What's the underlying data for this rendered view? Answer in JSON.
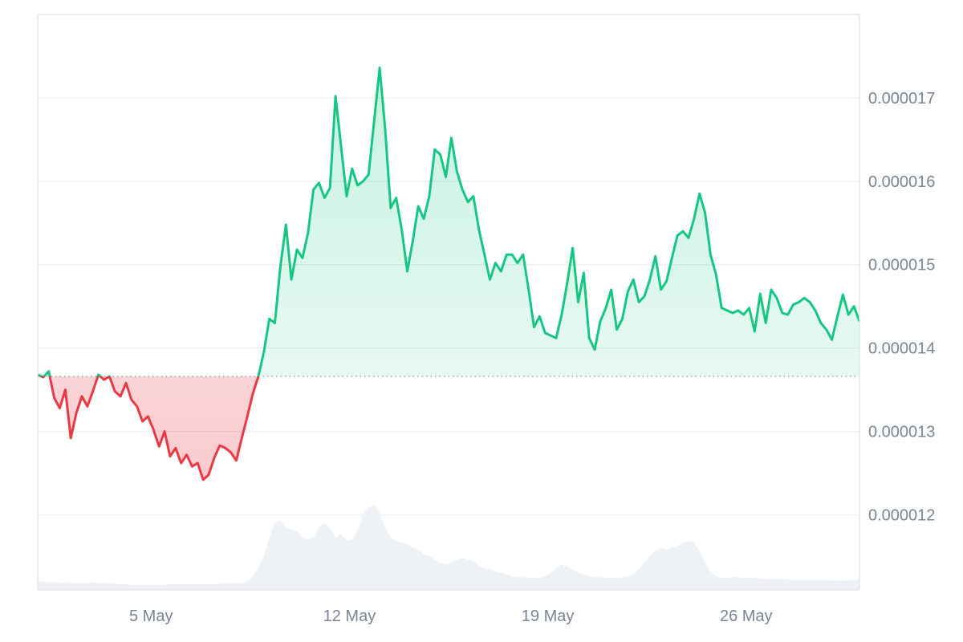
{
  "chart_data": {
    "type": "line",
    "x_ticks": [
      "5 May",
      "12 May",
      "19 May",
      "26 May"
    ],
    "y_ticks": [
      "0.000012",
      "0.000013",
      "0.000014",
      "0.000015",
      "0.000016",
      "0.000017"
    ],
    "ylim": [
      1.11e-05,
      1.8e-05
    ],
    "baseline": 1.366e-05,
    "colors": {
      "up": "#16c784",
      "down": "#ea3943",
      "grid": "#eef0f3",
      "volume": "#eef1f5",
      "axis_text": "#7a8596"
    },
    "series": [
      {
        "values": [
          1.368e-05,
          1.365e-05,
          1.372e-05,
          1.34e-05,
          1.328e-05,
          1.35e-05,
          1.292e-05,
          1.322e-05,
          1.342e-05,
          1.33e-05,
          1.348e-05,
          1.368e-05,
          1.362e-05,
          1.366e-05,
          1.348e-05,
          1.342e-05,
          1.358e-05,
          1.338e-05,
          1.33e-05,
          1.312e-05,
          1.318e-05,
          1.302e-05,
          1.282e-05,
          1.3e-05,
          1.27e-05,
          1.28e-05,
          1.262e-05,
          1.272e-05,
          1.258e-05,
          1.262e-05,
          1.242e-05,
          1.248e-05,
          1.268e-05,
          1.283e-05,
          1.28e-05,
          1.275e-05,
          1.265e-05,
          1.292e-05,
          1.318e-05,
          1.345e-05,
          1.366e-05,
          1.395e-05,
          1.435e-05,
          1.43e-05,
          1.498e-05,
          1.548e-05,
          1.482e-05,
          1.518e-05,
          1.508e-05,
          1.538e-05,
          1.59e-05,
          1.598e-05,
          1.58e-05,
          1.592e-05,
          1.702e-05,
          1.642e-05,
          1.582e-05,
          1.615e-05,
          1.595e-05,
          1.6e-05,
          1.608e-05,
          1.672e-05,
          1.736e-05,
          1.662e-05,
          1.568e-05,
          1.58e-05,
          1.542e-05,
          1.492e-05,
          1.528e-05,
          1.57e-05,
          1.555e-05,
          1.582e-05,
          1.638e-05,
          1.632e-05,
          1.605e-05,
          1.652e-05,
          1.612e-05,
          1.59e-05,
          1.575e-05,
          1.582e-05,
          1.542e-05,
          1.512e-05,
          1.482e-05,
          1.502e-05,
          1.492e-05,
          1.512e-05,
          1.512e-05,
          1.502e-05,
          1.512e-05,
          1.47e-05,
          1.425e-05,
          1.438e-05,
          1.418e-05,
          1.415e-05,
          1.412e-05,
          1.44e-05,
          1.478e-05,
          1.52e-05,
          1.455e-05,
          1.49e-05,
          1.412e-05,
          1.398e-05,
          1.432e-05,
          1.448e-05,
          1.47e-05,
          1.422e-05,
          1.435e-05,
          1.468e-05,
          1.482e-05,
          1.455e-05,
          1.462e-05,
          1.482e-05,
          1.51e-05,
          1.47e-05,
          1.48e-05,
          1.508e-05,
          1.535e-05,
          1.54e-05,
          1.532e-05,
          1.555e-05,
          1.585e-05,
          1.562e-05,
          1.512e-05,
          1.488e-05,
          1.448e-05,
          1.445e-05,
          1.442e-05,
          1.445e-05,
          1.44e-05,
          1.448e-05,
          1.42e-05,
          1.465e-05,
          1.43e-05,
          1.47e-05,
          1.46e-05,
          1.442e-05,
          1.44e-05,
          1.452e-05,
          1.455e-05,
          1.46e-05,
          1.455e-05,
          1.445e-05,
          1.43e-05,
          1.422e-05,
          1.41e-05,
          1.438e-05,
          1.464e-05,
          1.44e-05,
          1.45e-05,
          1.432e-05
        ]
      }
    ],
    "volume": [
      0.1,
      0.1,
      0.09,
      0.09,
      0.08,
      0.09,
      0.08,
      0.08,
      0.08,
      0.08,
      0.09,
      0.08,
      0.08,
      0.08,
      0.07,
      0.07,
      0.07,
      0.06,
      0.06,
      0.06,
      0.06,
      0.06,
      0.06,
      0.06,
      0.07,
      0.07,
      0.07,
      0.07,
      0.07,
      0.07,
      0.07,
      0.07,
      0.07,
      0.07,
      0.08,
      0.08,
      0.08,
      0.08,
      0.1,
      0.16,
      0.26,
      0.4,
      0.62,
      0.8,
      0.82,
      0.75,
      0.72,
      0.7,
      0.62,
      0.6,
      0.62,
      0.74,
      0.8,
      0.72,
      0.62,
      0.66,
      0.58,
      0.6,
      0.7,
      0.9,
      0.98,
      1.0,
      0.92,
      0.74,
      0.62,
      0.58,
      0.56,
      0.54,
      0.5,
      0.48,
      0.42,
      0.4,
      0.36,
      0.32,
      0.3,
      0.32,
      0.36,
      0.38,
      0.36,
      0.34,
      0.28,
      0.26,
      0.24,
      0.22,
      0.2,
      0.18,
      0.16,
      0.15,
      0.15,
      0.14,
      0.14,
      0.14,
      0.16,
      0.2,
      0.26,
      0.3,
      0.28,
      0.24,
      0.2,
      0.18,
      0.16,
      0.15,
      0.15,
      0.14,
      0.14,
      0.14,
      0.15,
      0.16,
      0.18,
      0.24,
      0.32,
      0.4,
      0.46,
      0.5,
      0.48,
      0.5,
      0.52,
      0.56,
      0.58,
      0.56,
      0.46,
      0.32,
      0.22,
      0.16,
      0.14,
      0.14,
      0.15,
      0.15,
      0.14,
      0.14,
      0.14,
      0.14,
      0.13,
      0.13,
      0.13,
      0.13,
      0.12,
      0.12,
      0.12,
      0.12,
      0.12,
      0.12,
      0.12,
      0.12,
      0.11,
      0.11,
      0.11,
      0.12,
      0.12,
      0.12
    ]
  }
}
